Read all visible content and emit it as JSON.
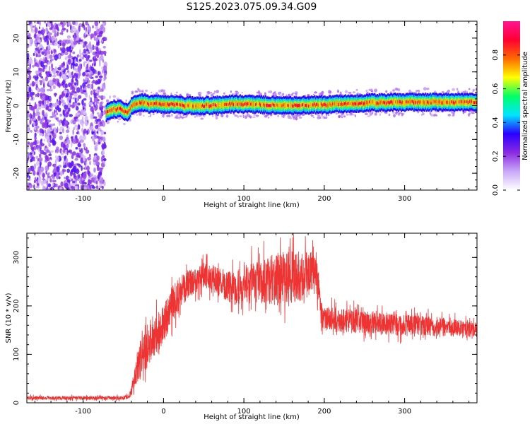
{
  "figure_title": "S125.2023.075.09.34.G09",
  "chart_data": [
    {
      "type": "heatmap",
      "xlabel": "Height of straight line (km)",
      "ylabel": "Frequency (Hz)",
      "xlim": [
        -170,
        390
      ],
      "ylim": [
        -25,
        25
      ],
      "xticks": [
        -100,
        0,
        100,
        200,
        300
      ],
      "yticks": [
        -20,
        -10,
        0,
        10,
        20
      ],
      "grid": false,
      "colorbar": {
        "label": "Normalized spectral amplitude",
        "range": [
          0.0,
          1.0
        ],
        "ticks": [
          0.0,
          0.2,
          0.4,
          0.6,
          0.8
        ],
        "tick_labels": [
          "0.0",
          "0.2",
          "0.4",
          "0.6",
          "0.8"
        ],
        "colors": [
          "#ffffff",
          "#c9a8f7",
          "#8a2be2",
          "#2a00ff",
          "#00e5ff",
          "#00ff66",
          "#ffff00",
          "#ff6a00",
          "#ff0033",
          "#ff1493"
        ]
      },
      "noise_region": {
        "x_start": -170,
        "x_end": -72,
        "amplitude": 0.25
      },
      "ridge": {
        "x": [
          -72,
          -65,
          -55,
          -45,
          -40,
          -30,
          -20,
          0,
          30,
          60,
          80,
          100,
          150,
          200,
          250,
          300,
          350,
          390
        ],
        "freq": [
          -2,
          -1,
          -1,
          -2,
          0,
          1,
          0.5,
          0.5,
          0,
          0,
          0.5,
          0.5,
          0,
          0.3,
          0.8,
          1.0,
          1.0,
          1.0
        ],
        "peak_amplitude": 0.9
      }
    },
    {
      "type": "line",
      "xlabel": "Height of straight line (km)",
      "ylabel": "SNR (10 * v/v)",
      "xlim": [
        -170,
        390
      ],
      "ylim": [
        0,
        350
      ],
      "xticks": [
        -100,
        0,
        100,
        200,
        300
      ],
      "yticks": [
        0,
        100,
        200,
        300
      ],
      "grid": false,
      "series": [
        {
          "color": "#ee3333",
          "x": [
            -170,
            -120,
            -80,
            -50,
            -45,
            -40,
            -38,
            -30,
            -20,
            -10,
            0,
            10,
            20,
            30,
            40,
            50,
            60,
            70,
            80,
            90,
            100,
            120,
            140,
            160,
            180,
            190,
            193,
            196,
            200,
            220,
            240,
            260,
            280,
            300,
            320,
            340,
            360,
            390
          ],
          "y": [
            10,
            10,
            10,
            10,
            12,
            20,
            40,
            90,
            110,
            140,
            160,
            200,
            225,
            245,
            255,
            262,
            258,
            250,
            240,
            235,
            245,
            250,
            255,
            260,
            265,
            268,
            240,
            185,
            175,
            170,
            168,
            165,
            162,
            160,
            160,
            158,
            155,
            150
          ],
          "noise_amplitude": [
            4,
            4,
            4,
            4,
            5,
            8,
            15,
            40,
            40,
            40,
            40,
            40,
            35,
            30,
            28,
            28,
            28,
            28,
            32,
            35,
            40,
            45,
            55,
            55,
            50,
            48,
            30,
            25,
            25,
            25,
            25,
            22,
            22,
            22,
            20,
            20,
            18,
            15
          ]
        }
      ]
    }
  ]
}
